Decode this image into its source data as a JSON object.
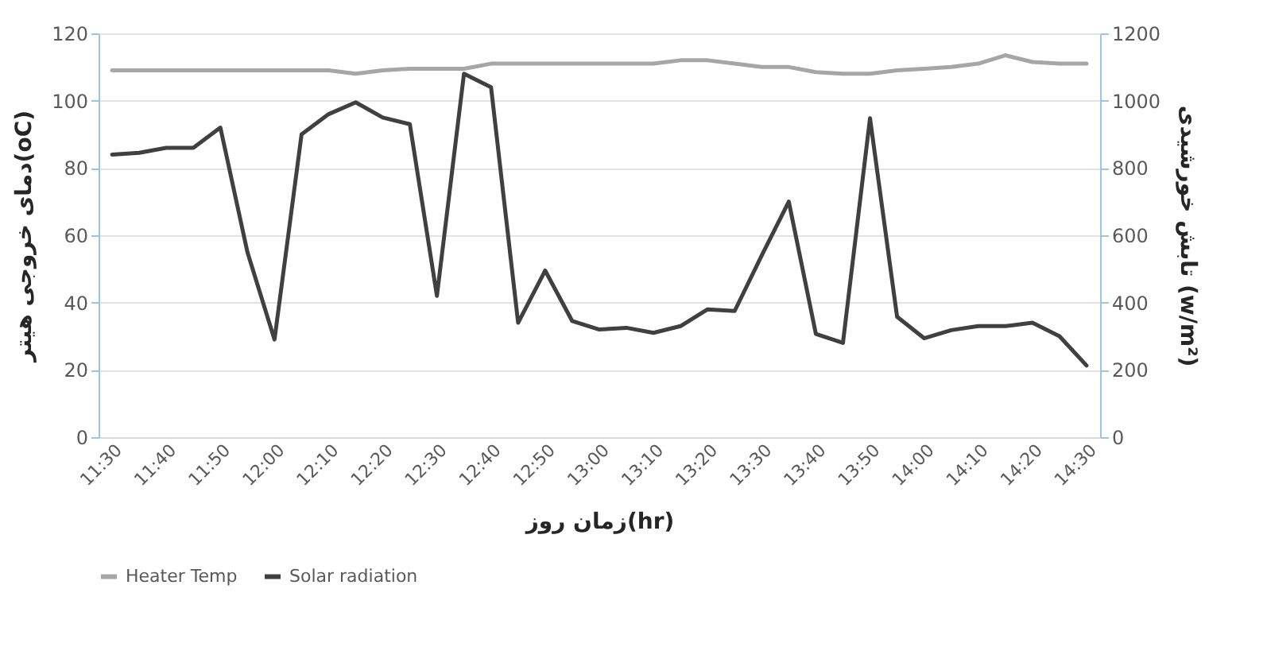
{
  "chart_data": {
    "type": "line",
    "categories": [
      "11:30",
      null,
      "11:40",
      null,
      "11:50",
      null,
      "12:00",
      null,
      "12:10",
      null,
      "12:20",
      null,
      "12:30",
      null,
      "12:40",
      null,
      "12:50",
      null,
      "13:00",
      null,
      "13:10",
      null,
      "13:20",
      null,
      "13:30",
      null,
      "13:40",
      null,
      "13:50",
      null,
      "14:00",
      null,
      "14:10",
      null,
      "14:20",
      null,
      "14:30"
    ],
    "series": [
      {
        "name": "Heater Temp",
        "color": "#a6a6a6",
        "values": [
          109,
          109,
          109,
          109,
          109,
          109,
          109,
          109,
          109,
          108,
          109,
          109.5,
          109.5,
          109.5,
          111,
          111,
          111,
          111,
          111,
          111,
          111,
          112,
          112,
          111,
          110,
          110,
          108.5,
          108,
          108,
          109,
          109.5,
          110,
          111,
          113.5,
          111.5,
          111,
          111
        ]
      },
      {
        "name": "Solar radiation",
        "color": "#404040",
        "axis": "y2",
        "values": [
          840,
          845,
          860,
          860,
          920,
          550,
          290,
          900,
          960,
          995,
          950,
          930,
          420,
          1080,
          1040,
          340,
          495,
          345,
          320,
          325,
          310,
          330,
          380,
          375,
          540,
          700,
          307,
          280,
          948,
          358,
          294,
          318,
          330,
          330,
          340,
          300,
          213
        ]
      }
    ],
    "xlabel": "زمان روز(hr)",
    "ylabel": "دمای خروجی هیتر(oC)",
    "y2label": "تابش خورشیدی (w/m²)",
    "ylim": [
      0,
      120
    ],
    "yticks": [
      0,
      20,
      40,
      60,
      80,
      100,
      120
    ],
    "y2lim": [
      0,
      1200
    ],
    "y2ticks": [
      0,
      200,
      400,
      600,
      800,
      1000,
      1200
    ],
    "grid": "y",
    "legend": "bottom"
  }
}
